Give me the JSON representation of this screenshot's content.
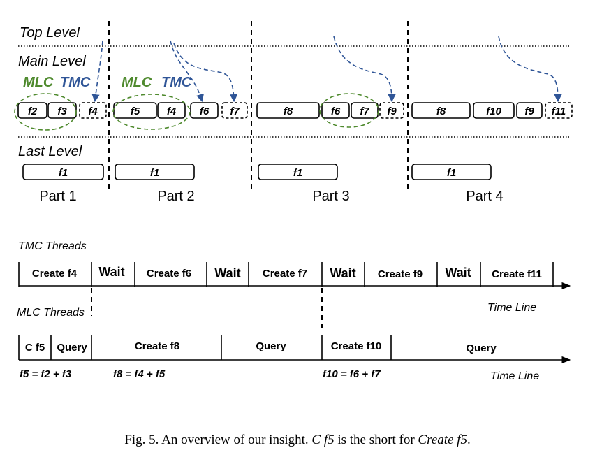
{
  "levels": {
    "top": "Top Level",
    "main": "Main Level",
    "last": "Last Level"
  },
  "legend": {
    "mlc": "MLC",
    "tmc": "TMC"
  },
  "parts": [
    "Part 1",
    "Part 2",
    "Part 3",
    "Part 4"
  ],
  "files": {
    "p1_f2": "f2",
    "p1_f3": "f3",
    "p1_f4": "f4",
    "p1_f1": "f1",
    "p2_f5": "f5",
    "p2_f4": "f4",
    "p2_f6": "f6",
    "p2_f7": "f7",
    "p2_f1": "f1",
    "p3_f8": "f8",
    "p3_f6": "f6",
    "p3_f7": "f7",
    "p3_f9": "f9",
    "p3_f1": "f1",
    "p4_f8": "f8",
    "p4_f10": "f10",
    "p4_f9": "f9",
    "p4_f11": "f11",
    "p4_f1": "f1"
  },
  "timeline": {
    "tmc_title": "TMC Threads",
    "mlc_title": "MLC Threads",
    "time_line": "Time Line",
    "tmc_segments": {
      "s1": "Create f4",
      "s2": "Wait",
      "s3": "Create f6",
      "s4": "Wait",
      "s5": "Create f7",
      "s6": "Wait",
      "s7": "Create f9",
      "s8": "Wait",
      "s9": "Create f11"
    },
    "mlc_segments": {
      "s1": "C f5",
      "s2": "Query",
      "s3": "Create f8",
      "s4": "Query",
      "s5": "Create f10",
      "s6": "Query"
    },
    "formulas": {
      "f5": "f5 = f2 + f3",
      "f8": "f8 = f4 + f5",
      "f10": "f10 = f6 + f7"
    }
  },
  "caption": {
    "prefix": "Fig. 5.  An overview of our insight. ",
    "term": "C f5",
    "mid": " is the short for ",
    "full": "Create f5",
    "end": "."
  }
}
